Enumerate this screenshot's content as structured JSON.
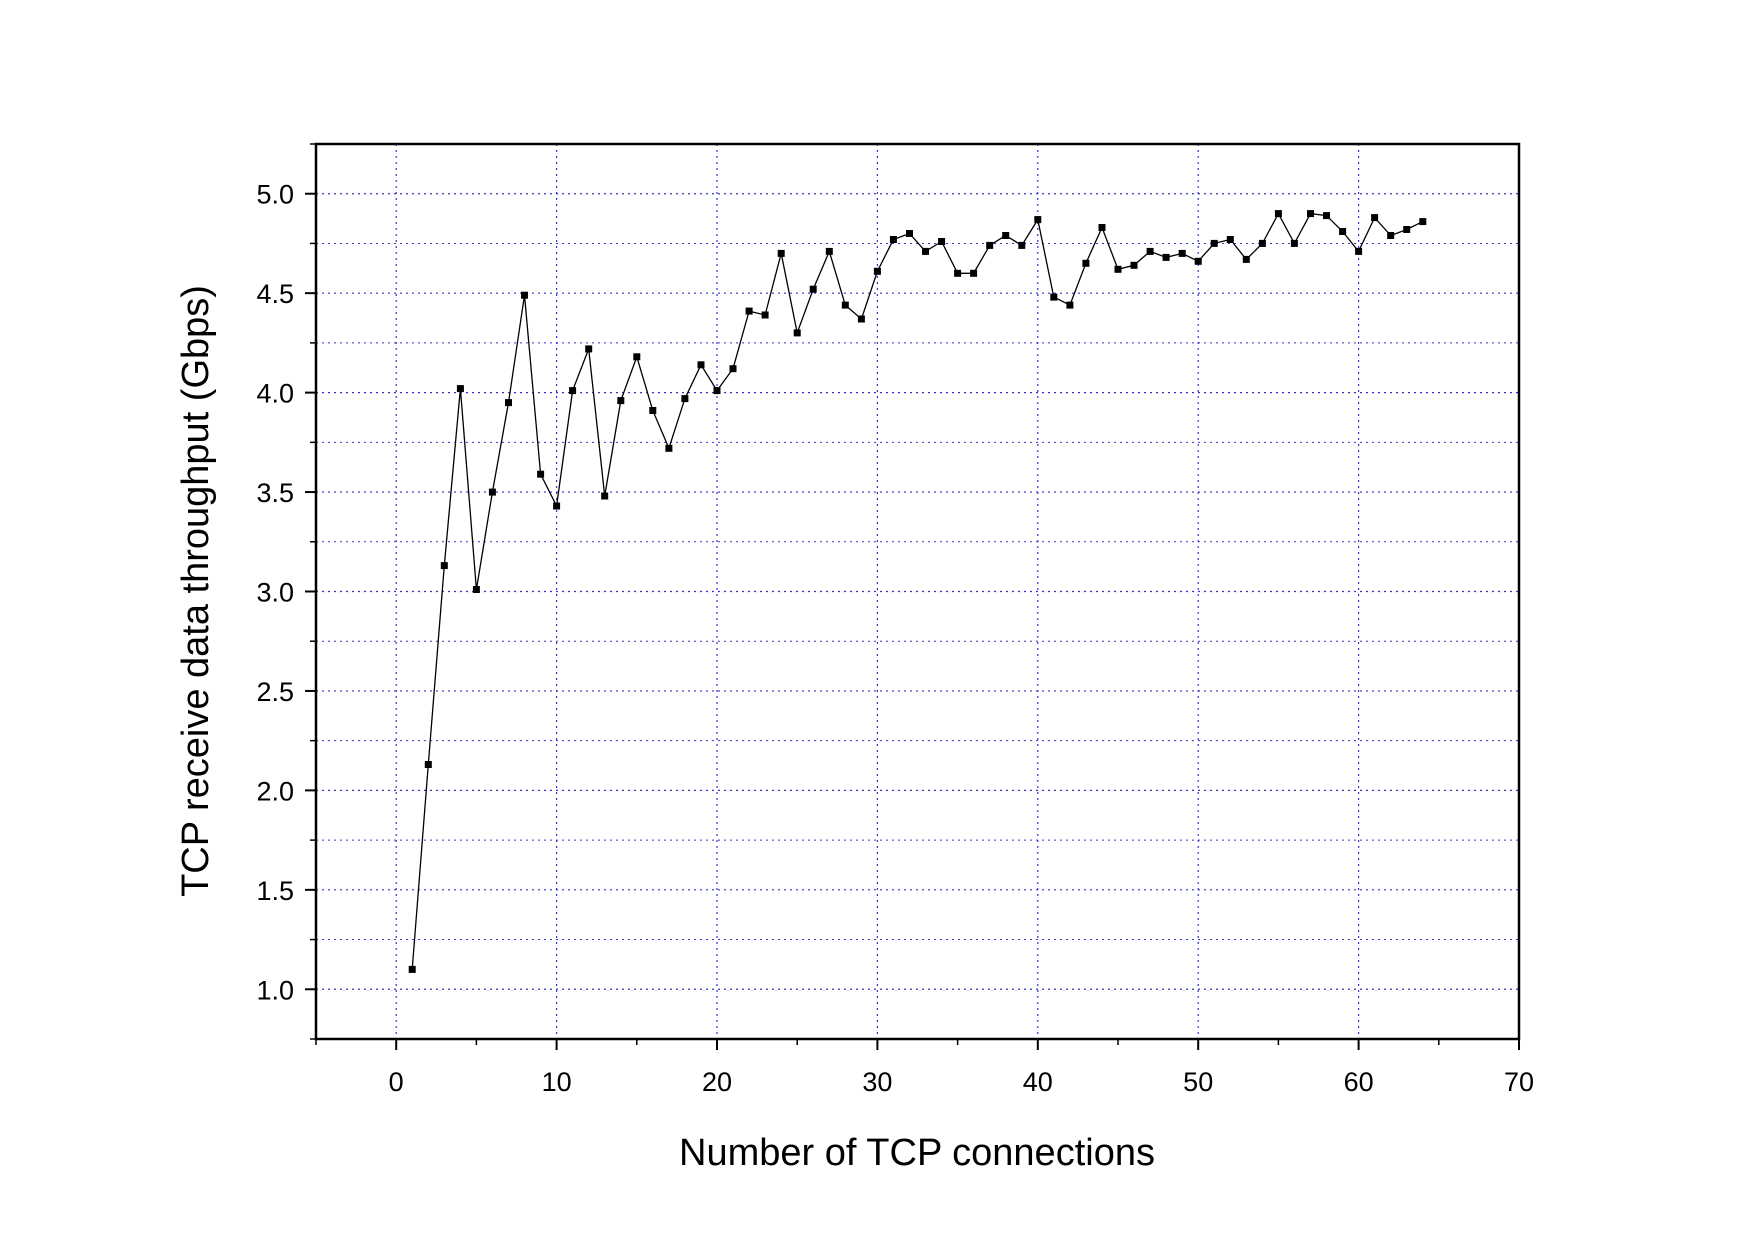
{
  "chart_data": {
    "type": "line",
    "title": "",
    "xlabel": "Number of TCP connections",
    "ylabel": "TCP receive data throughput (Gbps)",
    "xlim": [
      -5,
      70
    ],
    "ylim": [
      0.75,
      5.25
    ],
    "x_ticks": [
      0,
      10,
      20,
      30,
      40,
      50,
      60,
      70
    ],
    "x_tick_labels": [
      "0",
      "10",
      "20",
      "30",
      "40",
      "50",
      "60",
      "70"
    ],
    "y_ticks": [
      1.0,
      1.5,
      2.0,
      2.5,
      3.0,
      3.5,
      4.0,
      4.5,
      5.0
    ],
    "y_tick_labels": [
      "1.0",
      "1.5",
      "2.0",
      "2.5",
      "3.0",
      "3.5",
      "4.0",
      "4.5",
      "5.0"
    ],
    "grid": true,
    "legend": "none",
    "colors": {
      "line": "#000000",
      "marker": "#000000",
      "grid": "#3333cc",
      "axis": "#000000"
    },
    "series": [
      {
        "marker": "square",
        "x": [
          1,
          2,
          3,
          4,
          5,
          6,
          7,
          8,
          9,
          10,
          11,
          12,
          13,
          14,
          15,
          16,
          17,
          18,
          19,
          20,
          21,
          22,
          23,
          24,
          25,
          26,
          27,
          28,
          29,
          30,
          31,
          32,
          33,
          34,
          35,
          36,
          37,
          38,
          39,
          40,
          41,
          42,
          43,
          44,
          45,
          46,
          47,
          48,
          49,
          50,
          51,
          52,
          53,
          54,
          55,
          56,
          57,
          58,
          59,
          60,
          61,
          62,
          63,
          64
        ],
        "y": [
          1.1,
          2.13,
          3.13,
          4.02,
          3.01,
          3.5,
          3.95,
          4.49,
          3.59,
          3.43,
          4.01,
          4.22,
          3.48,
          3.96,
          4.18,
          3.91,
          3.72,
          3.97,
          4.14,
          4.01,
          4.12,
          4.41,
          4.39,
          4.7,
          4.3,
          4.52,
          4.71,
          4.44,
          4.37,
          4.61,
          4.77,
          4.8,
          4.71,
          4.76,
          4.6,
          4.6,
          4.74,
          4.79,
          4.74,
          4.87,
          4.48,
          4.44,
          4.65,
          4.83,
          4.62,
          4.64,
          4.71,
          4.68,
          4.7,
          4.66,
          4.75,
          4.77,
          4.67,
          4.75,
          4.9,
          4.75,
          4.9,
          4.89,
          4.81,
          4.71,
          4.88,
          4.79,
          4.82,
          4.86
        ]
      }
    ]
  }
}
